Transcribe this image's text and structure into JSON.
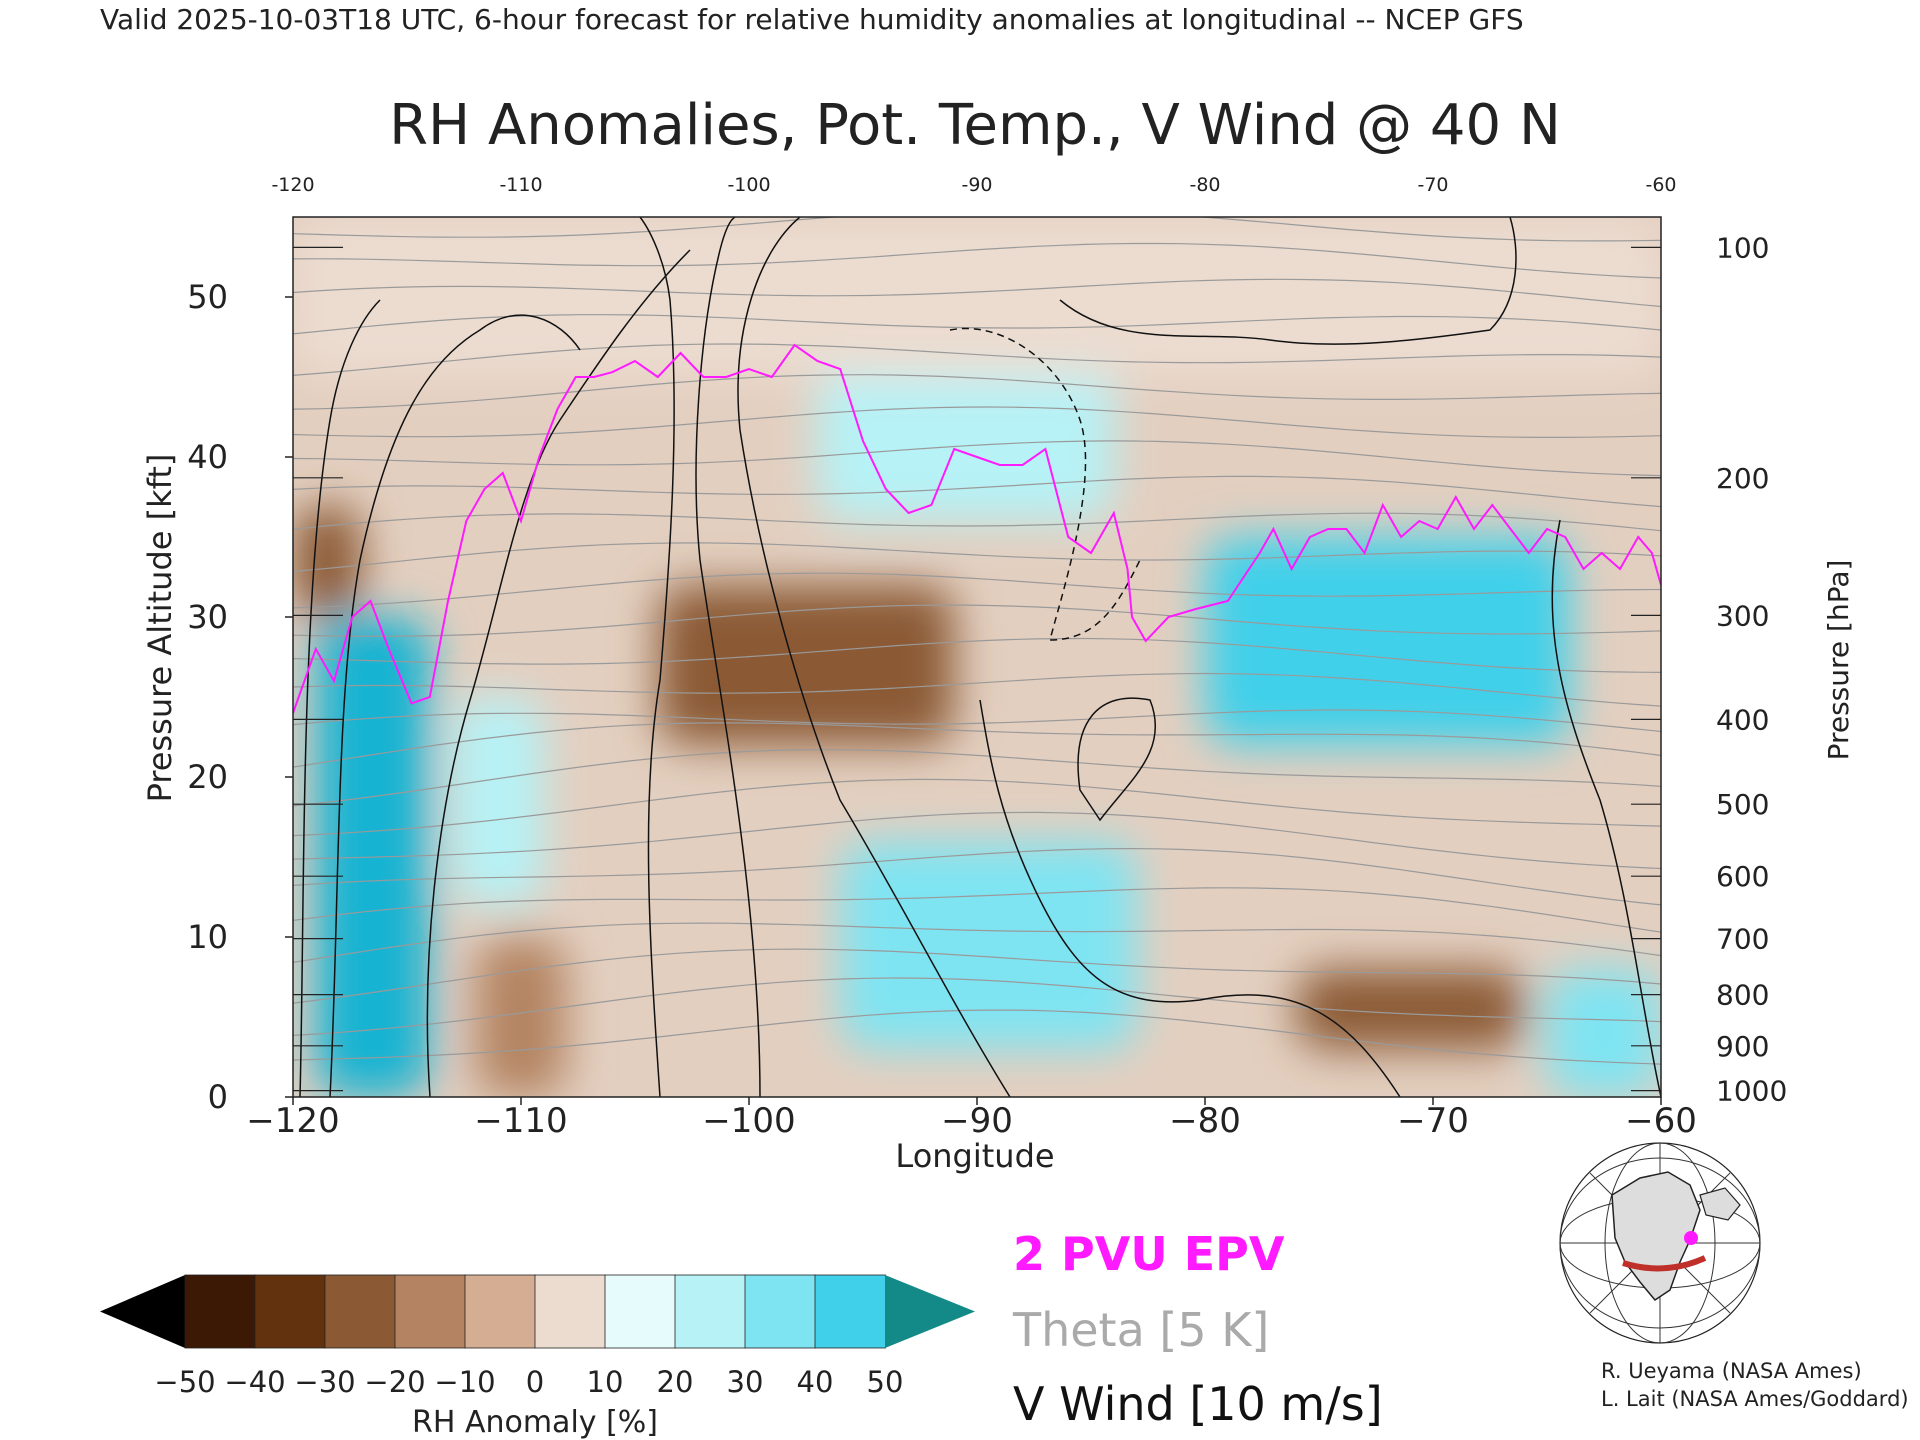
{
  "header": "Valid 2025-10-03T18 UTC, 6-hour forecast for relative humidity anomalies at longitudinal -- NCEP GFS",
  "chart_data": {
    "type": "heatmap",
    "title": "RH Anomalies, Pot. Temp., V Wind @ 40 N",
    "xlabel": "Longitude",
    "ylabel_left": "Pressure Altitude [kft]",
    "ylabel_right": "Pressure [hPa]",
    "xlim": [
      -120,
      -60
    ],
    "ylim": [
      0,
      55
    ],
    "x_ticks": [
      -120,
      -110,
      -100,
      -90,
      -80,
      -70,
      -60
    ],
    "x_tick_labels": [
      "−120",
      "−110",
      "−100",
      "−90",
      "−80",
      "−70",
      "−60"
    ],
    "top_tick_labels": [
      "-120",
      "-110",
      "-100",
      "-90",
      "-80",
      "-70",
      "-60"
    ],
    "y_ticks": [
      0,
      10,
      20,
      30,
      40,
      50
    ],
    "y_tick_labels": [
      "0",
      "10",
      "20",
      "30",
      "40",
      "50"
    ],
    "pressure_ticks": [
      {
        "hpa": "100",
        "kft": 53.1
      },
      {
        "hpa": "200",
        "kft": 38.7
      },
      {
        "hpa": "300",
        "kft": 30.1
      },
      {
        "hpa": "400",
        "kft": 23.6
      },
      {
        "hpa": "500",
        "kft": 18.3
      },
      {
        "hpa": "600",
        "kft": 13.8
      },
      {
        "hpa": "700",
        "kft": 9.9
      },
      {
        "hpa": "800",
        "kft": 6.4
      },
      {
        "hpa": "900",
        "kft": 3.2
      },
      {
        "hpa": "1000",
        "kft": 0.4
      }
    ],
    "rh_anomaly_regions": [
      {
        "lon": [
          -120,
          -117
        ],
        "kft": [
          30,
          37
        ],
        "value": -40
      },
      {
        "lon": [
          -119,
          -114
        ],
        "kft": [
          0,
          30
        ],
        "value": 45
      },
      {
        "lon": [
          -113,
          -109
        ],
        "kft": [
          12,
          25
        ],
        "value": 15
      },
      {
        "lon": [
          -112,
          -108
        ],
        "kft": [
          0,
          10
        ],
        "value": -30
      },
      {
        "lon": [
          -104,
          -91
        ],
        "kft": [
          22,
          32
        ],
        "value": -40
      },
      {
        "lon": [
          -97,
          -84
        ],
        "kft": [
          36,
          46
        ],
        "value": 15
      },
      {
        "lon": [
          -96,
          -83
        ],
        "kft": [
          3,
          16
        ],
        "value": 20
      },
      {
        "lon": [
          -80,
          -64
        ],
        "kft": [
          22,
          35
        ],
        "value": 35
      },
      {
        "lon": [
          -76,
          -66
        ],
        "kft": [
          3,
          8
        ],
        "value": -40
      },
      {
        "lon": [
          -65,
          -60
        ],
        "kft": [
          0,
          8
        ],
        "value": 25
      },
      {
        "lon": [
          -120,
          -60
        ],
        "kft": [
          45,
          55
        ],
        "value": -10
      }
    ],
    "pv_2pvu_line": {
      "name": "2 PVU EPV",
      "lon": [
        -120,
        -119,
        -118.2,
        -117.4,
        -116.6,
        -115.8,
        -114.8,
        -114,
        -113.2,
        -112.4,
        -111.6,
        -110.8,
        -110,
        -109.2,
        -108.4,
        -107.6,
        -106.8,
        -106,
        -105,
        -104,
        -103,
        -102,
        -101,
        -100,
        -99,
        -98,
        -97,
        -96,
        -95,
        -94,
        -93,
        -92,
        -91,
        -90,
        -89,
        -88,
        -87,
        -86,
        -85,
        -84,
        -83.4,
        -83.2,
        -82.6,
        -81.6,
        -80.4,
        -79,
        -77.6,
        -77,
        -76.2,
        -75.4,
        -74.6,
        -73.8,
        -73,
        -72.2,
        -71.4,
        -70.6,
        -69.8,
        -69,
        -68.2,
        -67.4,
        -66.6,
        -65.8,
        -65,
        -64.2,
        -63.4,
        -62.6,
        -61.8,
        -61,
        -60.4,
        -60
      ],
      "kft": [
        24,
        28,
        26,
        30,
        31,
        28,
        24.6,
        25,
        31,
        36,
        38,
        39,
        36,
        40,
        43,
        45,
        45,
        45.3,
        46,
        45,
        46.5,
        45,
        45,
        45.5,
        45,
        47,
        46,
        45.5,
        41,
        38,
        36.5,
        37,
        40.5,
        40,
        39.5,
        39.5,
        40.5,
        35,
        34,
        36.5,
        33,
        30,
        28.5,
        30,
        30.5,
        31,
        34,
        35.5,
        33,
        35,
        35.5,
        35.5,
        34,
        37,
        35,
        36,
        35.5,
        37.5,
        35.5,
        37,
        35.5,
        34,
        35.5,
        35,
        33,
        34,
        33,
        35,
        34,
        32
      ]
    },
    "legend": {
      "items": [
        "2 PVU EPV",
        "Theta [5 K]",
        "V Wind [10 m/s]"
      ],
      "colors": [
        "#ff00ff",
        "#aaaaaa",
        "#111111"
      ]
    },
    "colorbar": {
      "label": "RH Anomaly [%]",
      "ticks": [
        "−50",
        "−40",
        "−30",
        "−20",
        "−10",
        "0",
        "10",
        "20",
        "30",
        "40",
        "50"
      ],
      "colors": [
        "#000000",
        "#3b1905",
        "#62320f",
        "#8b5a34",
        "#b48462",
        "#d4ad93",
        "#ecdcd0",
        "#e6fbfb",
        "#b6f2f6",
        "#7fe4f2",
        "#41d0ea",
        "#16b3d2",
        "#0c8ca6",
        "#138a88"
      ]
    }
  },
  "credits": [
    "R. Ueyama (NASA Ames)",
    "L. Lait (NASA Ames/Goddard)"
  ]
}
